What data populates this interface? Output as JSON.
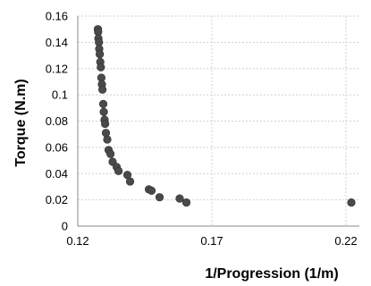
{
  "chart_data": {
    "type": "scatter",
    "xlabel": "1/Progression (1/m)",
    "ylabel": "Torque (N.m)",
    "xlim": [
      0.12,
      0.225
    ],
    "ylim": [
      0,
      0.16
    ],
    "x_ticks": [
      0.12,
      0.17,
      0.22
    ],
    "x_tick_labels": [
      "0.12",
      "0.17",
      "0.22"
    ],
    "y_ticks": [
      0,
      0.02,
      0.04,
      0.06,
      0.08,
      0.1,
      0.12,
      0.14,
      0.16
    ],
    "y_tick_labels": [
      "0",
      "0.02",
      "0.04",
      "0.06",
      "0.08",
      "0.1",
      "0.12",
      "0.14",
      "0.16"
    ],
    "grid": true,
    "marker_color": "#4a4a4a",
    "points": [
      {
        "x": 0.1275,
        "y": 0.15
      },
      {
        "x": 0.1276,
        "y": 0.148
      },
      {
        "x": 0.1277,
        "y": 0.143
      },
      {
        "x": 0.1279,
        "y": 0.14
      },
      {
        "x": 0.128,
        "y": 0.135
      },
      {
        "x": 0.1282,
        "y": 0.131
      },
      {
        "x": 0.1284,
        "y": 0.125
      },
      {
        "x": 0.1286,
        "y": 0.121
      },
      {
        "x": 0.1288,
        "y": 0.113
      },
      {
        "x": 0.129,
        "y": 0.108
      },
      {
        "x": 0.1292,
        "y": 0.104
      },
      {
        "x": 0.1295,
        "y": 0.093
      },
      {
        "x": 0.1297,
        "y": 0.087
      },
      {
        "x": 0.13,
        "y": 0.081
      },
      {
        "x": 0.1302,
        "y": 0.078
      },
      {
        "x": 0.1305,
        "y": 0.071
      },
      {
        "x": 0.131,
        "y": 0.066
      },
      {
        "x": 0.1315,
        "y": 0.058
      },
      {
        "x": 0.1322,
        "y": 0.055
      },
      {
        "x": 0.133,
        "y": 0.049
      },
      {
        "x": 0.1345,
        "y": 0.045
      },
      {
        "x": 0.1352,
        "y": 0.042
      },
      {
        "x": 0.1385,
        "y": 0.039
      },
      {
        "x": 0.1395,
        "y": 0.034
      },
      {
        "x": 0.1465,
        "y": 0.028
      },
      {
        "x": 0.1475,
        "y": 0.027
      },
      {
        "x": 0.1505,
        "y": 0.022
      },
      {
        "x": 0.158,
        "y": 0.021
      },
      {
        "x": 0.1605,
        "y": 0.018
      },
      {
        "x": 0.222,
        "y": 0.018
      }
    ]
  }
}
